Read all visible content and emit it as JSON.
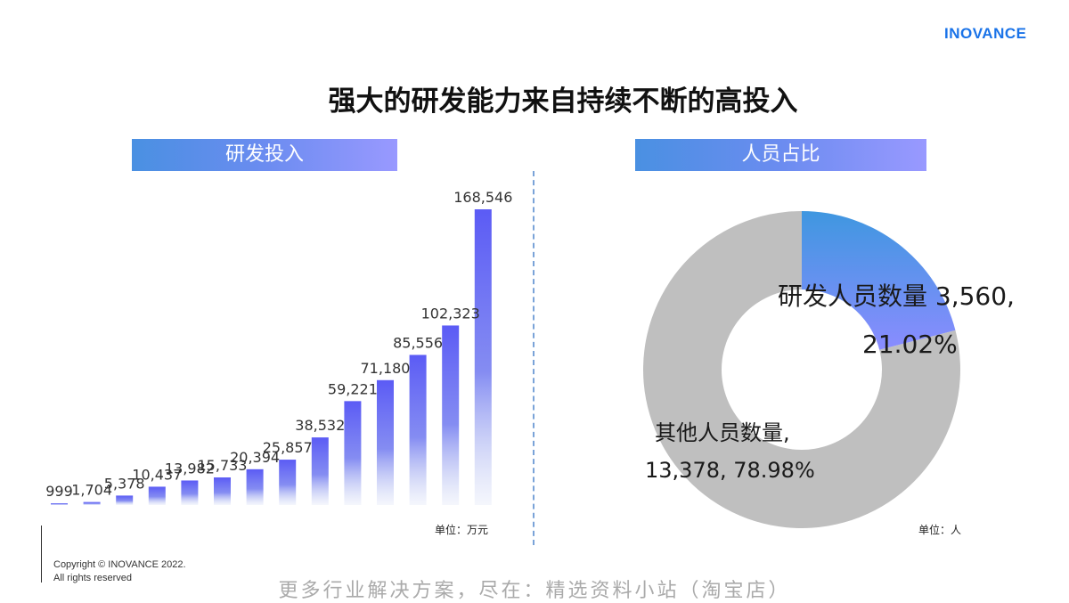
{
  "logo": "INOVANCE",
  "title": "强大的研发能力来自持续不断的高投入",
  "left_panel": {
    "header": "研发投入",
    "unit": "单位：万元"
  },
  "right_panel": {
    "header": "人员占比",
    "unit": "单位：人",
    "rd_label_line1": "研发人员数量 3,560,",
    "rd_label_line2": "21.02%",
    "other_label_line1": "其他人员数量,",
    "other_label_line2": "13,378, 78.98%"
  },
  "copyright_line1": "Copyright © INOVANCE 2022.",
  "copyright_line2": "All rights reserved",
  "footer": "更多行业解决方案，尽在：精选资料小站（淘宝店）",
  "colors": {
    "bar_top": "#5b5bf5",
    "donut_rd": "#3f97e0",
    "donut_rd_end": "#8a8cff",
    "donut_other": "#bfbfbf",
    "brand": "#1a73e8"
  },
  "chart_data": [
    {
      "type": "bar",
      "title": "研发投入",
      "unit": "单位：万元",
      "values": [
        999,
        1704,
        5378,
        10437,
        13982,
        15733,
        20394,
        25857,
        38532,
        59221,
        71180,
        85556,
        102323,
        168546
      ],
      "value_labels": [
        "999",
        "1,704",
        "5,378",
        "10,437",
        "13,982",
        "15,733",
        "20,394",
        "25,857",
        "38,532",
        "59,221",
        "71,180",
        "85,556",
        "102,323",
        "168,546"
      ],
      "ylim": [
        0,
        168546
      ]
    },
    {
      "type": "pie",
      "title": "人员占比",
      "unit": "单位：人",
      "slices": [
        {
          "label": "研发人员数量",
          "value": 3560,
          "percent": 21.02
        },
        {
          "label": "其他人员数量",
          "value": 13378,
          "percent": 78.98
        }
      ]
    }
  ]
}
